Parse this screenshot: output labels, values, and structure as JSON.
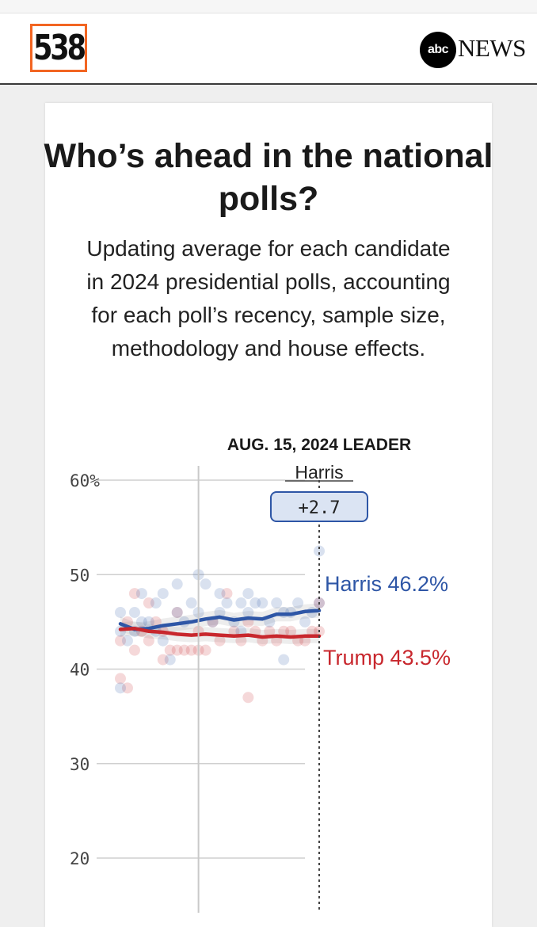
{
  "header": {
    "logo_text": "538",
    "abc_text": "abc",
    "news_text": "NEWS"
  },
  "title": "Who’s ahead in the national polls?",
  "subtitle": "Updating average for each candidate in 2024 presidential polls, accounting for each poll’s recency, sample size, methodology and house effects.",
  "colors": {
    "harris": "#2e56a6",
    "trump": "#c8272d",
    "accent": "#f26522"
  },
  "chart_data": {
    "type": "line",
    "leader_date_label": "AUG. 15, 2024 LEADER",
    "leader_name": "Harris",
    "leader_margin": "+2.7",
    "y_tick_labels": [
      "60%",
      "50",
      "40",
      "30",
      "20"
    ],
    "y_ticks": [
      60,
      50,
      40,
      30,
      20
    ],
    "ylim": [
      20,
      60
    ],
    "x_range": [
      0,
      28
    ],
    "x_marker": 11,
    "series": [
      {
        "name": "Harris",
        "label": "Harris 46.2%",
        "color": "#2e56a6",
        "x": [
          0,
          2,
          4,
          6,
          8,
          10,
          12,
          14,
          16,
          18,
          20,
          22,
          24,
          26,
          28
        ],
        "values": [
          44.8,
          44.2,
          44.3,
          44.6,
          44.8,
          45.0,
          45.3,
          45.5,
          45.2,
          45.4,
          45.3,
          45.8,
          45.8,
          46.1,
          46.2
        ]
      },
      {
        "name": "Trump",
        "label": "Trump 43.5%",
        "color": "#c8272d",
        "x": [
          0,
          2,
          4,
          6,
          8,
          10,
          12,
          14,
          16,
          18,
          20,
          22,
          24,
          26,
          28
        ],
        "values": [
          44.2,
          44.3,
          44.0,
          43.9,
          43.7,
          43.6,
          43.7,
          43.6,
          43.5,
          43.6,
          43.4,
          43.5,
          43.4,
          43.5,
          43.5
        ]
      }
    ],
    "polls_harris": [
      [
        0,
        44
      ],
      [
        0,
        46
      ],
      [
        0,
        38
      ],
      [
        1,
        43
      ],
      [
        2,
        44
      ],
      [
        2,
        46
      ],
      [
        3,
        45
      ],
      [
        3,
        48
      ],
      [
        4,
        45
      ],
      [
        5,
        47
      ],
      [
        5,
        44
      ],
      [
        6,
        48
      ],
      [
        6,
        43
      ],
      [
        7,
        41
      ],
      [
        8,
        46
      ],
      [
        8,
        49
      ],
      [
        9,
        45
      ],
      [
        10,
        47
      ],
      [
        11,
        50
      ],
      [
        11,
        46
      ],
      [
        12,
        49
      ],
      [
        13,
        45
      ],
      [
        14,
        48
      ],
      [
        14,
        46
      ],
      [
        15,
        47
      ],
      [
        16,
        45
      ],
      [
        17,
        47
      ],
      [
        17,
        44
      ],
      [
        18,
        48
      ],
      [
        18,
        46
      ],
      [
        19,
        47
      ],
      [
        20,
        47
      ],
      [
        21,
        45
      ],
      [
        22,
        47
      ],
      [
        23,
        41
      ],
      [
        23,
        46
      ],
      [
        24,
        46
      ],
      [
        25,
        47
      ],
      [
        26,
        45
      ],
      [
        27,
        46
      ],
      [
        28,
        52.5
      ],
      [
        28,
        47
      ]
    ],
    "polls_trump": [
      [
        0,
        39
      ],
      [
        0,
        43
      ],
      [
        1,
        38
      ],
      [
        1,
        45
      ],
      [
        2,
        48
      ],
      [
        2,
        42
      ],
      [
        3,
        44
      ],
      [
        4,
        47
      ],
      [
        4,
        43
      ],
      [
        5,
        45
      ],
      [
        6,
        41
      ],
      [
        6,
        44
      ],
      [
        7,
        42
      ],
      [
        8,
        42
      ],
      [
        8,
        46
      ],
      [
        9,
        42
      ],
      [
        10,
        42
      ],
      [
        11,
        44
      ],
      [
        11,
        42
      ],
      [
        12,
        42
      ],
      [
        13,
        45
      ],
      [
        14,
        43
      ],
      [
        15,
        48
      ],
      [
        16,
        44
      ],
      [
        17,
        43
      ],
      [
        18,
        45
      ],
      [
        18,
        37
      ],
      [
        19,
        44
      ],
      [
        20,
        43
      ],
      [
        21,
        44
      ],
      [
        22,
        43
      ],
      [
        23,
        44
      ],
      [
        24,
        44
      ],
      [
        25,
        43
      ],
      [
        26,
        43
      ],
      [
        27,
        44
      ],
      [
        28,
        47
      ],
      [
        28,
        44
      ]
    ]
  }
}
